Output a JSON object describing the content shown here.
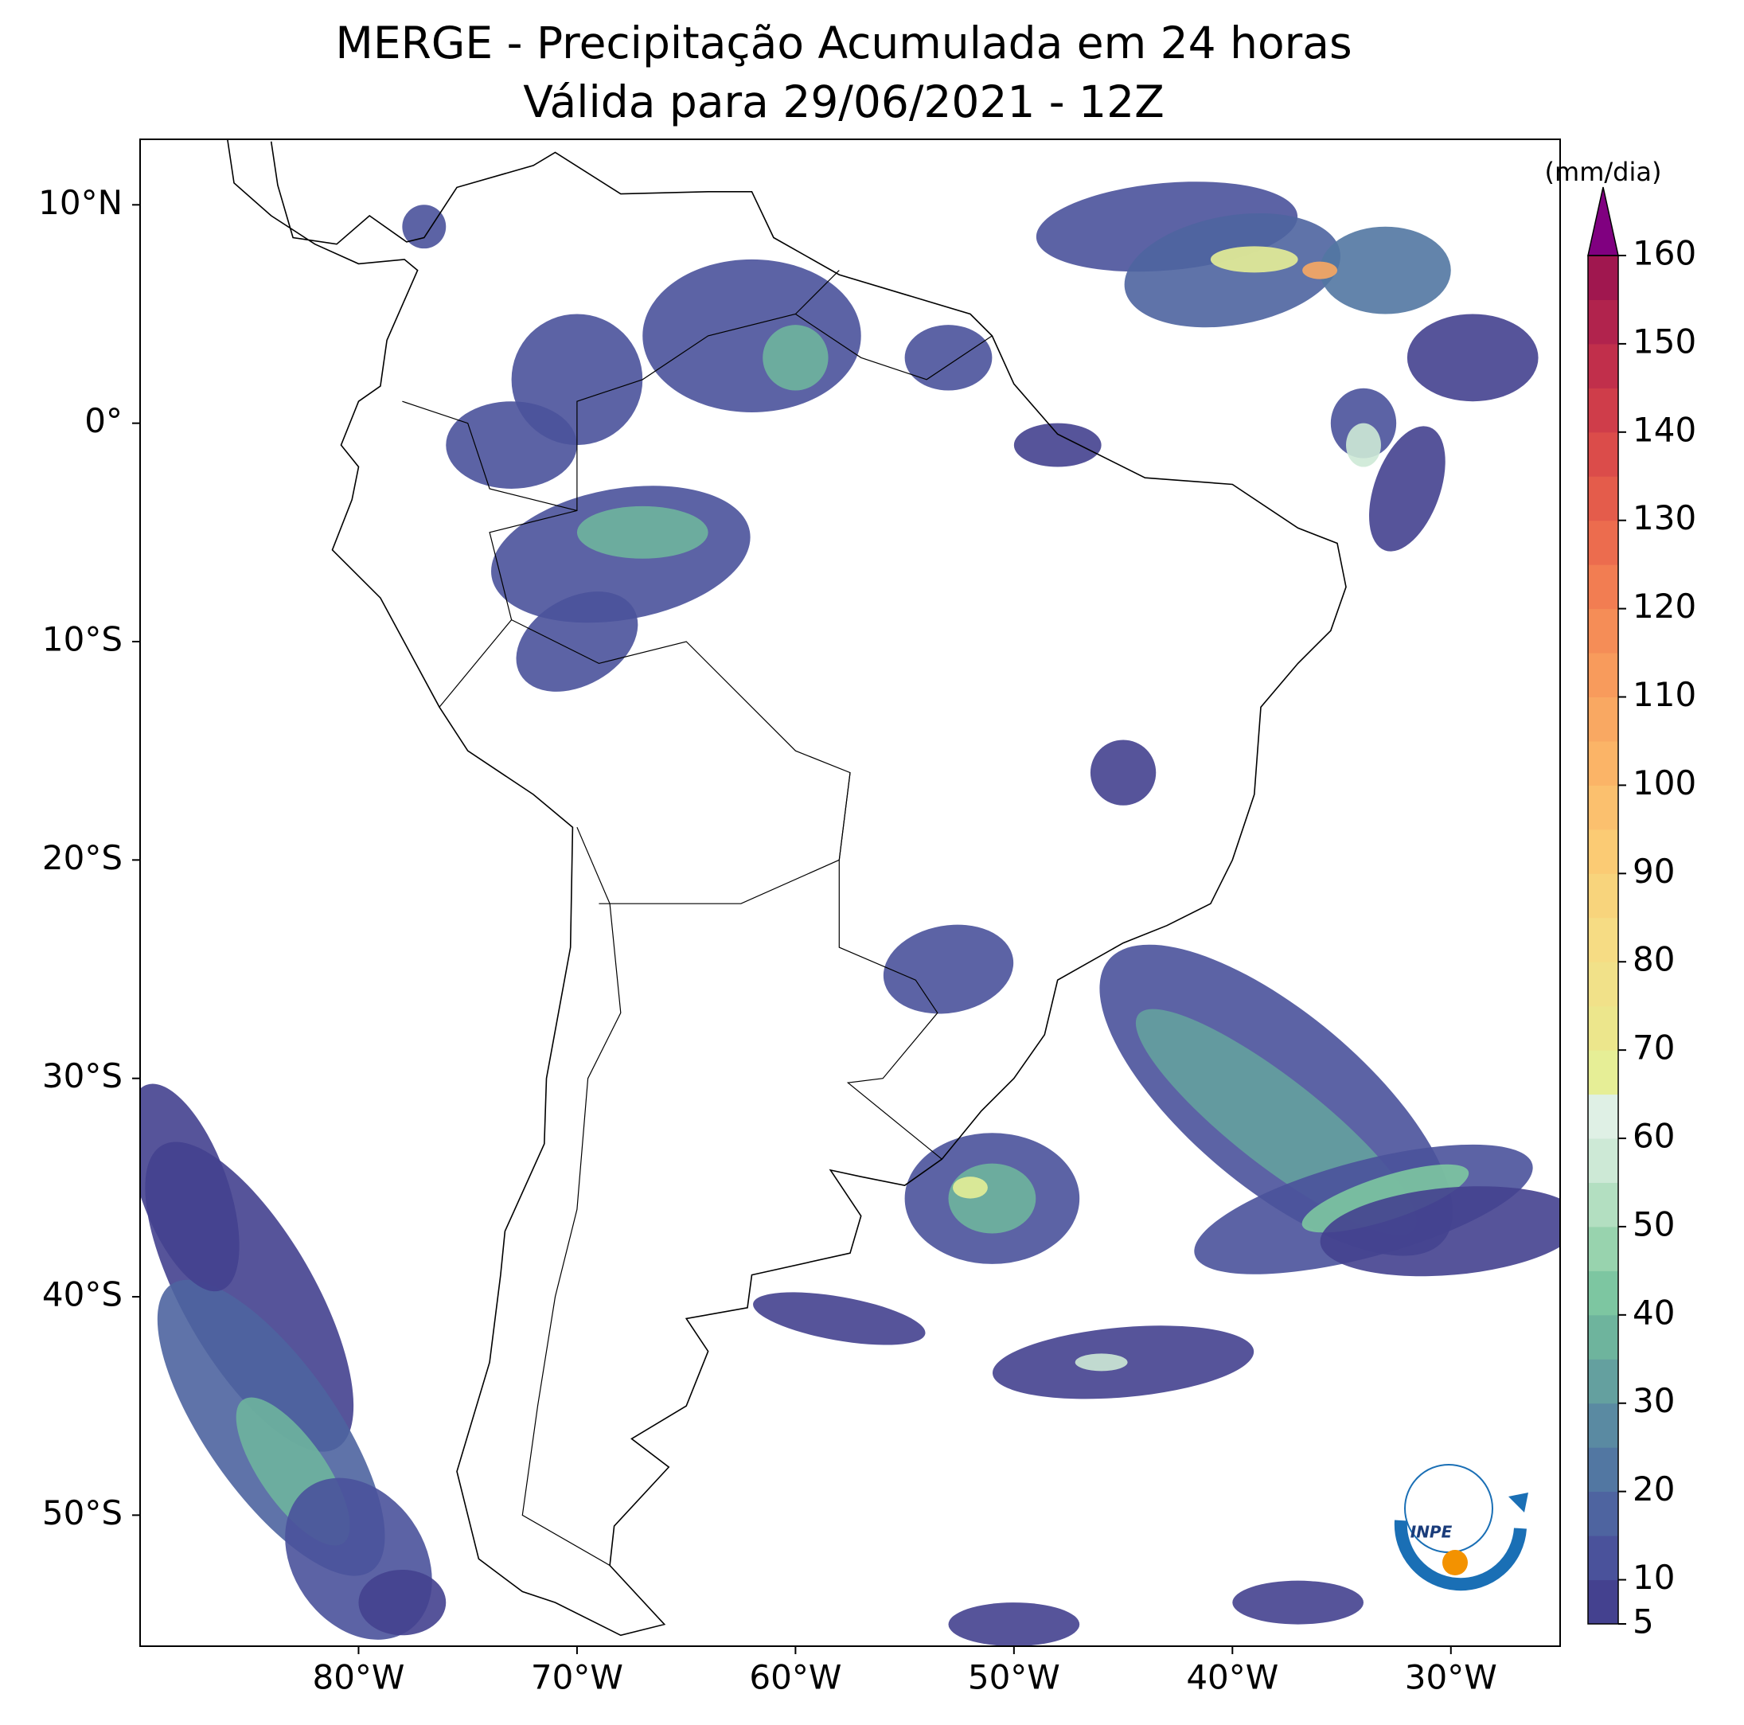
{
  "chart_data": {
    "type": "map",
    "title": "MERGE - Precipitação Acumulada em 24 horas",
    "subtitle": "Válida para 29/06/2021 - 12Z",
    "xlim": [
      -90,
      -25
    ],
    "ylim": [
      -56,
      13
    ],
    "xticks": [
      {
        "value": -80,
        "label": "80°W"
      },
      {
        "value": -70,
        "label": "70°W"
      },
      {
        "value": -60,
        "label": "60°W"
      },
      {
        "value": -50,
        "label": "50°W"
      },
      {
        "value": -40,
        "label": "40°W"
      },
      {
        "value": -30,
        "label": "30°W"
      }
    ],
    "yticks": [
      {
        "value": 10,
        "label": "10°N"
      },
      {
        "value": 0,
        "label": "0°"
      },
      {
        "value": -10,
        "label": "10°S"
      },
      {
        "value": -20,
        "label": "20°S"
      },
      {
        "value": -30,
        "label": "30°S"
      },
      {
        "value": -40,
        "label": "40°S"
      },
      {
        "value": -50,
        "label": "50°S"
      }
    ],
    "colorbar": {
      "label": "(mm/dia)",
      "lim": [
        5,
        160
      ],
      "ticks": [
        5,
        10,
        20,
        30,
        40,
        50,
        60,
        70,
        80,
        90,
        100,
        110,
        120,
        130,
        140,
        150,
        160
      ],
      "colors": [
        "#44418f",
        "#4a529b",
        "#4e64a0",
        "#5277a2",
        "#5a8aa2",
        "#64a09f",
        "#6eb49d",
        "#7dc6a1",
        "#98d3ae",
        "#b3dfc1",
        "#cde9d6",
        "#dff0e5",
        "#e6ee96",
        "#ece68c",
        "#f1e189",
        "#f6dc84",
        "#f8d47c",
        "#fbcb74",
        "#fbc06e",
        "#fbb467",
        "#f9a862",
        "#f89b5c",
        "#f58d57",
        "#f27d52",
        "#ec6c4e",
        "#e45c4b",
        "#db4c4a",
        "#cf3d4a",
        "#c12f4b",
        "#b1234d",
        "#a0174f"
      ],
      "extend_color": "#800080"
    },
    "logo": "INPE"
  }
}
